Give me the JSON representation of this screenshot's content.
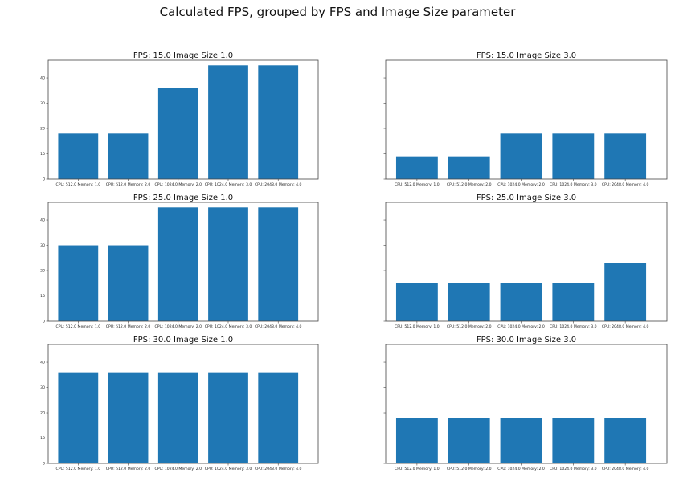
{
  "figure_title": "Calculated FPS, grouped by FPS and Image Size parameter",
  "colors": {
    "bar": "#1f77b4"
  },
  "chart_data": [
    {
      "type": "bar",
      "title": "FPS: 15.0 Image Size 1.0",
      "categories": [
        "CPU: 512.0 Memory: 1.0",
        "CPU: 512.0 Memory: 2.0",
        "CPU: 1024.0 Memory: 2.0",
        "CPU: 1024.0 Memory: 3.0",
        "CPU: 2048.0 Memory: 4.0"
      ],
      "values": [
        18,
        18,
        36,
        45,
        45
      ],
      "ylim": [
        0,
        47
      ],
      "yticks": [
        0,
        10,
        20,
        30,
        40
      ],
      "show_yticklabels": true
    },
    {
      "type": "bar",
      "title": "FPS: 15.0 Image Size 3.0",
      "categories": [
        "CPU: 512.0 Memory: 1.0",
        "CPU: 512.0 Memory: 2.0",
        "CPU: 1024.0 Memory: 2.0",
        "CPU: 1024.0 Memory: 3.0",
        "CPU: 2048.0 Memory: 4.0"
      ],
      "values": [
        9,
        9,
        18,
        18,
        18
      ],
      "ylim": [
        0,
        47
      ],
      "yticks": [
        0,
        10,
        20,
        30,
        40
      ],
      "show_yticklabels": false
    },
    {
      "type": "bar",
      "title": "FPS: 25.0 Image Size 1.0",
      "categories": [
        "CPU: 512.0 Memory: 1.0",
        "CPU: 512.0 Memory: 2.0",
        "CPU: 1024.0 Memory: 2.0",
        "CPU: 1024.0 Memory: 3.0",
        "CPU: 2048.0 Memory: 4.0"
      ],
      "values": [
        30,
        30,
        45,
        45,
        45
      ],
      "ylim": [
        0,
        47
      ],
      "yticks": [
        0,
        10,
        20,
        30,
        40
      ],
      "show_yticklabels": true
    },
    {
      "type": "bar",
      "title": "FPS: 25.0 Image Size 3.0",
      "categories": [
        "CPU: 512.0 Memory: 1.0",
        "CPU: 512.0 Memory: 2.0",
        "CPU: 1024.0 Memory: 2.0",
        "CPU: 1024.0 Memory: 3.0",
        "CPU: 2048.0 Memory: 4.0"
      ],
      "values": [
        15,
        15,
        15,
        15,
        23
      ],
      "ylim": [
        0,
        47
      ],
      "yticks": [
        0,
        10,
        20,
        30,
        40
      ],
      "show_yticklabels": false
    },
    {
      "type": "bar",
      "title": "FPS: 30.0 Image Size 1.0",
      "categories": [
        "CPU: 512.0 Memory: 1.0",
        "CPU: 512.0 Memory: 2.0",
        "CPU: 1024.0 Memory: 2.0",
        "CPU: 1024.0 Memory: 3.0",
        "CPU: 2048.0 Memory: 4.0"
      ],
      "values": [
        36,
        36,
        36,
        36,
        36
      ],
      "ylim": [
        0,
        47
      ],
      "yticks": [
        0,
        10,
        20,
        30,
        40
      ],
      "show_yticklabels": true
    },
    {
      "type": "bar",
      "title": "FPS: 30.0 Image Size 3.0",
      "categories": [
        "CPU: 512.0 Memory: 1.0",
        "CPU: 512.0 Memory: 2.0",
        "CPU: 1024.0 Memory: 2.0",
        "CPU: 1024.0 Memory: 3.0",
        "CPU: 2048.0 Memory: 4.0"
      ],
      "values": [
        18,
        18,
        18,
        18,
        18
      ],
      "ylim": [
        0,
        47
      ],
      "yticks": [
        0,
        10,
        20,
        30,
        40
      ],
      "show_yticklabels": false
    }
  ]
}
